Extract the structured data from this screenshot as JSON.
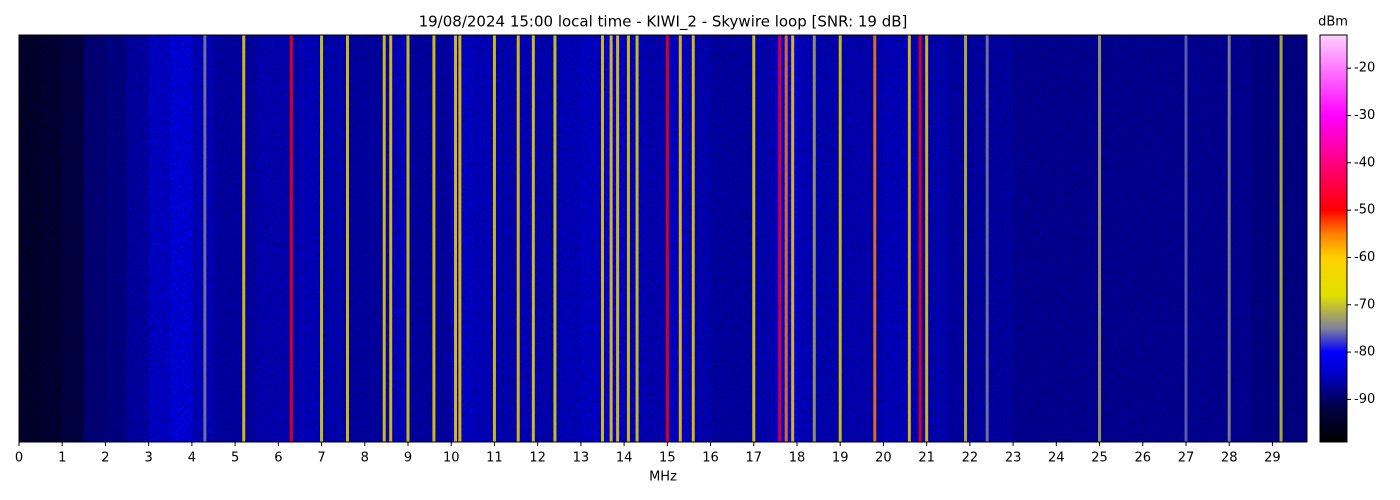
{
  "chart_data": {
    "type": "spectrogram",
    "title": "19/08/2024 15:00 local time - KIWI_2 - Skywire loop [SNR: 19 dB]",
    "xlabel": "MHz",
    "colorbar_label": "dBm",
    "xlim": [
      0,
      29.8
    ],
    "xticks": [
      0,
      1,
      2,
      3,
      4,
      5,
      6,
      7,
      8,
      9,
      10,
      11,
      12,
      13,
      14,
      15,
      16,
      17,
      18,
      19,
      20,
      21,
      22,
      23,
      24,
      25,
      26,
      27,
      28,
      29
    ],
    "clim": [
      -99,
      -13
    ],
    "cticks": [
      -20,
      -30,
      -40,
      -50,
      -60,
      -70,
      -80,
      -90
    ],
    "colormap": [
      {
        "value": -99,
        "color": "#000000"
      },
      {
        "value": -92,
        "color": "#000040"
      },
      {
        "value": -85,
        "color": "#0000c0"
      },
      {
        "value": -80,
        "color": "#0000ff"
      },
      {
        "value": -75,
        "color": "#8080a0"
      },
      {
        "value": -68,
        "color": "#e0e000"
      },
      {
        "value": -60,
        "color": "#ffd000"
      },
      {
        "value": -55,
        "color": "#ff8000"
      },
      {
        "value": -50,
        "color": "#ff0000"
      },
      {
        "value": -40,
        "color": "#ff0080"
      },
      {
        "value": -30,
        "color": "#ff00ff"
      },
      {
        "value": -13,
        "color": "#ffd0ff"
      }
    ],
    "x": [
      0.25,
      0.75,
      1.25,
      1.75,
      2.25,
      2.75,
      3.25,
      3.75,
      4.25,
      4.75,
      5.25,
      5.75,
      6.25,
      6.75,
      7.25,
      7.75,
      8.25,
      8.75,
      9.25,
      9.75,
      10.25,
      10.75,
      11.25,
      11.75,
      12.25,
      12.75,
      13.25,
      13.75,
      14.25,
      14.75,
      15.25,
      15.75,
      16.25,
      16.75,
      17.25,
      17.75,
      18.25,
      18.75,
      19.25,
      19.75,
      20.25,
      20.75,
      21.25,
      21.75,
      22.25,
      22.75,
      23.25,
      23.75,
      24.25,
      24.75,
      25.25,
      25.75,
      26.25,
      26.75,
      27.25,
      27.75,
      28.25,
      28.75,
      29.25,
      29.75
    ],
    "values": [
      -96,
      -95,
      -93,
      -89,
      -88,
      -86,
      -83,
      -81,
      -84,
      -86,
      -86,
      -85,
      -85,
      -84,
      -85,
      -86,
      -86,
      -84,
      -86,
      -86,
      -83,
      -84,
      -85,
      -84,
      -85,
      -84,
      -83,
      -82,
      -84,
      -85,
      -83,
      -85,
      -86,
      -86,
      -85,
      -80,
      -84,
      -85,
      -85,
      -85,
      -84,
      -84,
      -85,
      -86,
      -86,
      -86,
      -87,
      -87,
      -87,
      -87,
      -87,
      -87,
      -87,
      -87,
      -87,
      -87,
      -87,
      -88,
      -88,
      -88
    ],
    "signals": {
      "x": [
        4.3,
        5.2,
        6.3,
        7.0,
        7.6,
        8.45,
        8.6,
        9.0,
        9.6,
        10.1,
        10.2,
        11.0,
        11.55,
        11.9,
        12.4,
        13.5,
        13.7,
        13.85,
        14.1,
        14.3,
        15.0,
        15.3,
        15.6,
        17.0,
        17.6,
        17.75,
        17.9,
        18.4,
        19.0,
        19.8,
        20.6,
        20.85,
        21.0,
        21.9,
        22.4,
        25.0,
        27.0,
        28.0,
        29.2
      ],
      "values": [
        -75,
        -65,
        -50,
        -68,
        -65,
        -65,
        -62,
        -66,
        -65,
        -62,
        -64,
        -66,
        -62,
        -64,
        -68,
        -64,
        -62,
        -62,
        -63,
        -66,
        -50,
        -60,
        -63,
        -64,
        -50,
        -55,
        -60,
        -72,
        -66,
        -55,
        -62,
        -50,
        -62,
        -70,
        -75,
        -72,
        -76,
        -74,
        -70
      ]
    }
  }
}
